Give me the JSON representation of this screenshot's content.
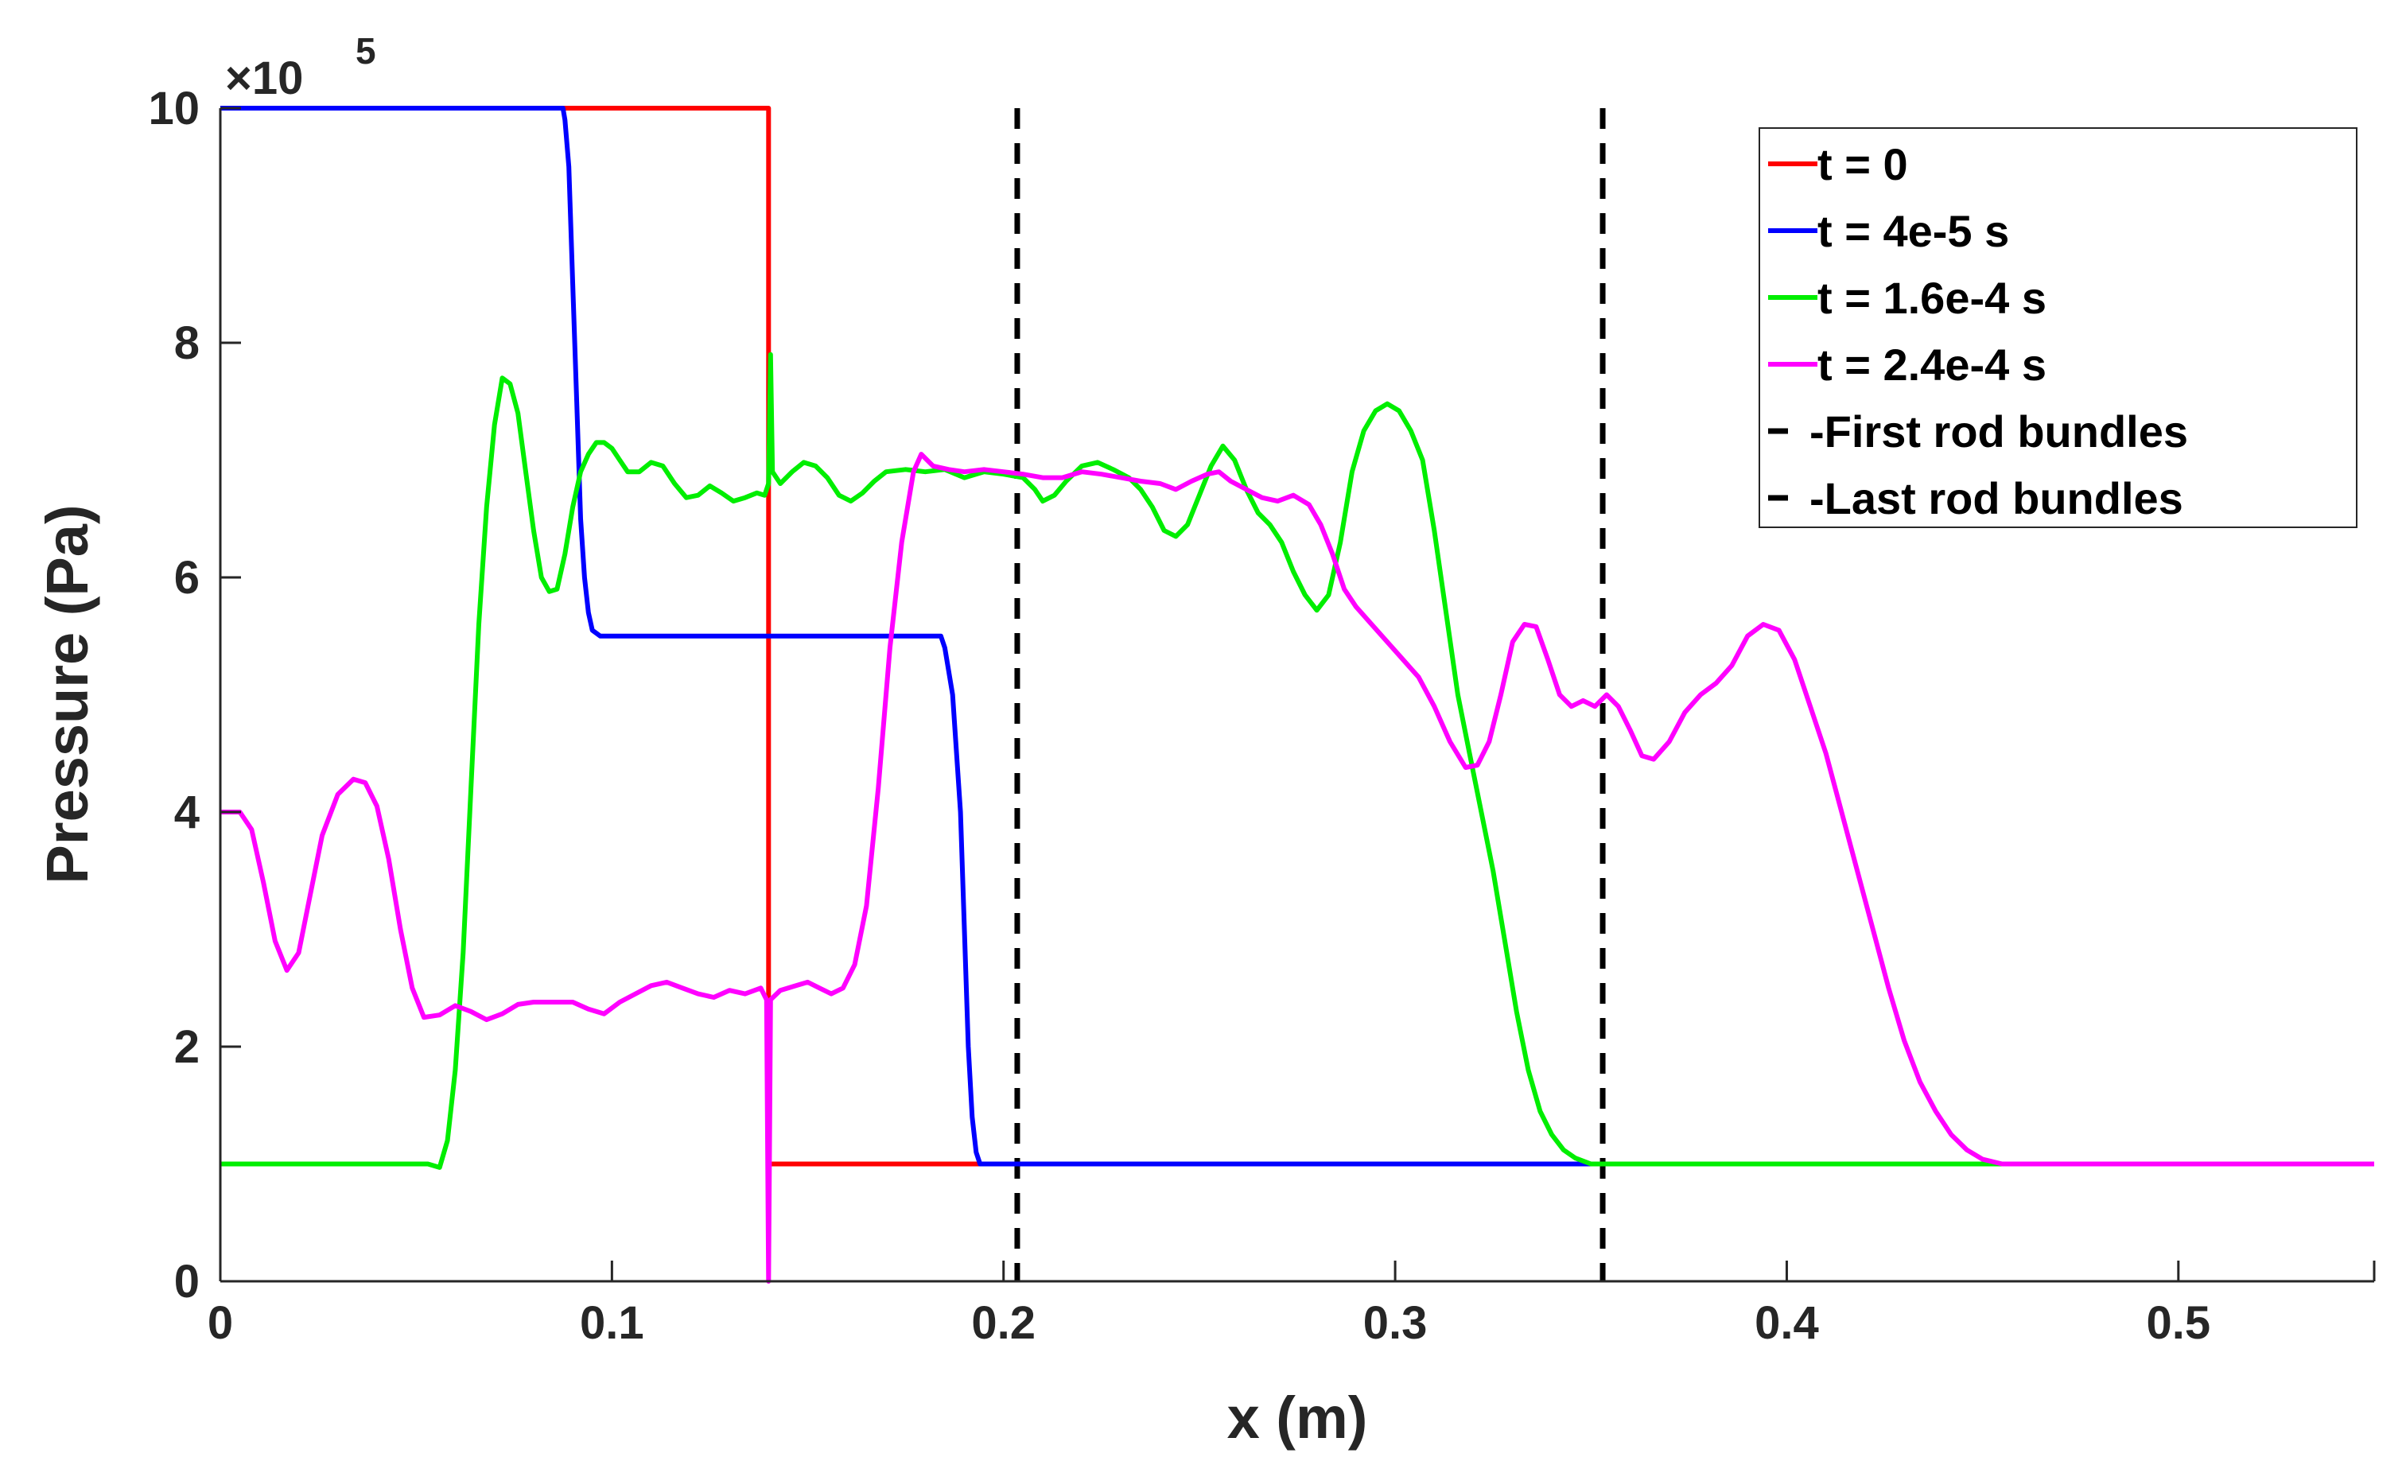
{
  "chart_data": {
    "type": "line",
    "xlabel": "x (m)",
    "ylabel": "Pressure (Pa)",
    "y_multiplier": {
      "base": "×10",
      "exponent": "5"
    },
    "xlim": [
      0,
      0.55
    ],
    "ylim": [
      0,
      10
    ],
    "xticks": [
      0,
      0.1,
      0.2,
      0.3,
      0.4,
      0.5
    ],
    "xtick_labels": [
      "0",
      "0.1",
      "0.2",
      "0.3",
      "0.4",
      "0.5"
    ],
    "yticks": [
      0,
      2,
      4,
      6,
      8,
      10
    ],
    "ytick_labels": [
      "0",
      "2",
      "4",
      "6",
      "8",
      "10"
    ],
    "grid": false,
    "legend_position": "top-right",
    "series": [
      {
        "name": "t = 0",
        "color": "#ff0000",
        "points": [
          [
            0,
            10
          ],
          [
            0.14,
            10
          ],
          [
            0.14,
            1
          ],
          [
            0.55,
            1
          ]
        ]
      },
      {
        "name": "t = 4e-5 s",
        "color": "#0000ff",
        "points": [
          [
            0,
            10
          ],
          [
            0.0875,
            10
          ],
          [
            0.088,
            9.9
          ],
          [
            0.089,
            9.5
          ],
          [
            0.09,
            8.5
          ],
          [
            0.091,
            7.5
          ],
          [
            0.092,
            6.5
          ],
          [
            0.093,
            6.0
          ],
          [
            0.094,
            5.7
          ],
          [
            0.095,
            5.55
          ],
          [
            0.097,
            5.5
          ],
          [
            0.14,
            5.5
          ],
          [
            0.184,
            5.5
          ],
          [
            0.185,
            5.4
          ],
          [
            0.187,
            5.0
          ],
          [
            0.189,
            4.0
          ],
          [
            0.19,
            3.0
          ],
          [
            0.191,
            2.0
          ],
          [
            0.192,
            1.4
          ],
          [
            0.193,
            1.1
          ],
          [
            0.194,
            1.0
          ],
          [
            0.55,
            1
          ]
        ]
      },
      {
        "name": "t = 1.6e-4 s",
        "color": "#00ee00",
        "points": [
          [
            0,
            1
          ],
          [
            0.053,
            1
          ],
          [
            0.056,
            0.97
          ],
          [
            0.058,
            1.2
          ],
          [
            0.06,
            1.8
          ],
          [
            0.062,
            2.8
          ],
          [
            0.064,
            4.2
          ],
          [
            0.066,
            5.6
          ],
          [
            0.068,
            6.6
          ],
          [
            0.07,
            7.3
          ],
          [
            0.072,
            7.7
          ],
          [
            0.074,
            7.65
          ],
          [
            0.076,
            7.4
          ],
          [
            0.078,
            6.9
          ],
          [
            0.08,
            6.4
          ],
          [
            0.082,
            6.0
          ],
          [
            0.084,
            5.88
          ],
          [
            0.086,
            5.9
          ],
          [
            0.088,
            6.2
          ],
          [
            0.09,
            6.6
          ],
          [
            0.092,
            6.9
          ],
          [
            0.094,
            7.05
          ],
          [
            0.096,
            7.15
          ],
          [
            0.098,
            7.15
          ],
          [
            0.1,
            7.1
          ],
          [
            0.102,
            7.0
          ],
          [
            0.104,
            6.9
          ],
          [
            0.107,
            6.9
          ],
          [
            0.11,
            6.98
          ],
          [
            0.113,
            6.95
          ],
          [
            0.116,
            6.8
          ],
          [
            0.119,
            6.68
          ],
          [
            0.122,
            6.7
          ],
          [
            0.125,
            6.78
          ],
          [
            0.128,
            6.72
          ],
          [
            0.131,
            6.65
          ],
          [
            0.134,
            6.68
          ],
          [
            0.137,
            6.72
          ],
          [
            0.139,
            6.7
          ],
          [
            0.14,
            6.8
          ],
          [
            0.1405,
            7.9
          ],
          [
            0.141,
            6.9
          ],
          [
            0.143,
            6.8
          ],
          [
            0.146,
            6.9
          ],
          [
            0.149,
            6.98
          ],
          [
            0.152,
            6.95
          ],
          [
            0.155,
            6.85
          ],
          [
            0.158,
            6.7
          ],
          [
            0.161,
            6.65
          ],
          [
            0.164,
            6.72
          ],
          [
            0.167,
            6.82
          ],
          [
            0.17,
            6.9
          ],
          [
            0.175,
            6.92
          ],
          [
            0.18,
            6.9
          ],
          [
            0.185,
            6.92
          ],
          [
            0.19,
            6.85
          ],
          [
            0.195,
            6.9
          ],
          [
            0.2,
            6.88
          ],
          [
            0.205,
            6.85
          ],
          [
            0.208,
            6.75
          ],
          [
            0.21,
            6.65
          ],
          [
            0.213,
            6.7
          ],
          [
            0.216,
            6.82
          ],
          [
            0.22,
            6.95
          ],
          [
            0.224,
            6.98
          ],
          [
            0.228,
            6.92
          ],
          [
            0.232,
            6.85
          ],
          [
            0.235,
            6.75
          ],
          [
            0.238,
            6.6
          ],
          [
            0.241,
            6.4
          ],
          [
            0.244,
            6.35
          ],
          [
            0.247,
            6.45
          ],
          [
            0.25,
            6.7
          ],
          [
            0.253,
            6.95
          ],
          [
            0.256,
            7.12
          ],
          [
            0.259,
            7.0
          ],
          [
            0.262,
            6.75
          ],
          [
            0.265,
            6.55
          ],
          [
            0.268,
            6.45
          ],
          [
            0.271,
            6.3
          ],
          [
            0.274,
            6.05
          ],
          [
            0.277,
            5.85
          ],
          [
            0.28,
            5.72
          ],
          [
            0.283,
            5.85
          ],
          [
            0.286,
            6.3
          ],
          [
            0.289,
            6.9
          ],
          [
            0.292,
            7.25
          ],
          [
            0.295,
            7.42
          ],
          [
            0.298,
            7.48
          ],
          [
            0.301,
            7.42
          ],
          [
            0.304,
            7.25
          ],
          [
            0.307,
            7.0
          ],
          [
            0.31,
            6.4
          ],
          [
            0.313,
            5.7
          ],
          [
            0.316,
            5.0
          ],
          [
            0.319,
            4.5
          ],
          [
            0.322,
            4.0
          ],
          [
            0.325,
            3.5
          ],
          [
            0.328,
            2.9
          ],
          [
            0.331,
            2.3
          ],
          [
            0.334,
            1.8
          ],
          [
            0.337,
            1.45
          ],
          [
            0.34,
            1.25
          ],
          [
            0.343,
            1.12
          ],
          [
            0.346,
            1.05
          ],
          [
            0.35,
            1.0
          ],
          [
            0.55,
            1
          ]
        ]
      },
      {
        "name": "t = 2.4e-4 s",
        "color": "#ff00ff",
        "points": [
          [
            0,
            4.0
          ],
          [
            0.005,
            4.0
          ],
          [
            0.008,
            3.85
          ],
          [
            0.011,
            3.4
          ],
          [
            0.014,
            2.9
          ],
          [
            0.017,
            2.65
          ],
          [
            0.02,
            2.8
          ],
          [
            0.023,
            3.3
          ],
          [
            0.026,
            3.8
          ],
          [
            0.03,
            4.15
          ],
          [
            0.034,
            4.28
          ],
          [
            0.037,
            4.25
          ],
          [
            0.04,
            4.05
          ],
          [
            0.043,
            3.6
          ],
          [
            0.046,
            3.0
          ],
          [
            0.049,
            2.5
          ],
          [
            0.052,
            2.25
          ],
          [
            0.056,
            2.27
          ],
          [
            0.06,
            2.35
          ],
          [
            0.064,
            2.3
          ],
          [
            0.068,
            2.23
          ],
          [
            0.072,
            2.28
          ],
          [
            0.076,
            2.36
          ],
          [
            0.08,
            2.38
          ],
          [
            0.085,
            2.38
          ],
          [
            0.09,
            2.38
          ],
          [
            0.094,
            2.32
          ],
          [
            0.098,
            2.28
          ],
          [
            0.102,
            2.38
          ],
          [
            0.106,
            2.45
          ],
          [
            0.11,
            2.52
          ],
          [
            0.114,
            2.55
          ],
          [
            0.118,
            2.5
          ],
          [
            0.122,
            2.45
          ],
          [
            0.126,
            2.42
          ],
          [
            0.13,
            2.48
          ],
          [
            0.134,
            2.45
          ],
          [
            0.138,
            2.5
          ],
          [
            0.1395,
            2.4
          ],
          [
            0.14,
            0.0
          ],
          [
            0.1405,
            2.4
          ],
          [
            0.143,
            2.48
          ],
          [
            0.147,
            2.52
          ],
          [
            0.15,
            2.55
          ],
          [
            0.153,
            2.5
          ],
          [
            0.156,
            2.45
          ],
          [
            0.159,
            2.5
          ],
          [
            0.162,
            2.7
          ],
          [
            0.165,
            3.2
          ],
          [
            0.168,
            4.2
          ],
          [
            0.171,
            5.4
          ],
          [
            0.174,
            6.3
          ],
          [
            0.177,
            6.9
          ],
          [
            0.179,
            7.05
          ],
          [
            0.182,
            6.95
          ],
          [
            0.186,
            6.92
          ],
          [
            0.19,
            6.9
          ],
          [
            0.195,
            6.92
          ],
          [
            0.2,
            6.9
          ],
          [
            0.205,
            6.88
          ],
          [
            0.21,
            6.85
          ],
          [
            0.215,
            6.85
          ],
          [
            0.22,
            6.9
          ],
          [
            0.225,
            6.88
          ],
          [
            0.23,
            6.85
          ],
          [
            0.235,
            6.82
          ],
          [
            0.24,
            6.8
          ],
          [
            0.244,
            6.75
          ],
          [
            0.248,
            6.82
          ],
          [
            0.252,
            6.88
          ],
          [
            0.255,
            6.9
          ],
          [
            0.258,
            6.82
          ],
          [
            0.262,
            6.75
          ],
          [
            0.266,
            6.68
          ],
          [
            0.27,
            6.65
          ],
          [
            0.274,
            6.7
          ],
          [
            0.278,
            6.62
          ],
          [
            0.281,
            6.45
          ],
          [
            0.284,
            6.2
          ],
          [
            0.287,
            5.9
          ],
          [
            0.29,
            5.75
          ],
          [
            0.294,
            5.6
          ],
          [
            0.298,
            5.45
          ],
          [
            0.302,
            5.3
          ],
          [
            0.306,
            5.15
          ],
          [
            0.31,
            4.9
          ],
          [
            0.314,
            4.6
          ],
          [
            0.318,
            4.38
          ],
          [
            0.321,
            4.4
          ],
          [
            0.324,
            4.6
          ],
          [
            0.327,
            5.0
          ],
          [
            0.33,
            5.45
          ],
          [
            0.333,
            5.6
          ],
          [
            0.336,
            5.58
          ],
          [
            0.339,
            5.3
          ],
          [
            0.342,
            5.0
          ],
          [
            0.345,
            4.9
          ],
          [
            0.348,
            4.95
          ],
          [
            0.351,
            4.9
          ],
          [
            0.354,
            5.0
          ],
          [
            0.357,
            4.9
          ],
          [
            0.36,
            4.7
          ],
          [
            0.363,
            4.48
          ],
          [
            0.366,
            4.45
          ],
          [
            0.37,
            4.6
          ],
          [
            0.374,
            4.85
          ],
          [
            0.378,
            5.0
          ],
          [
            0.382,
            5.1
          ],
          [
            0.386,
            5.25
          ],
          [
            0.39,
            5.5
          ],
          [
            0.394,
            5.6
          ],
          [
            0.398,
            5.55
          ],
          [
            0.402,
            5.3
          ],
          [
            0.406,
            4.9
          ],
          [
            0.41,
            4.5
          ],
          [
            0.414,
            4.0
          ],
          [
            0.418,
            3.5
          ],
          [
            0.422,
            3.0
          ],
          [
            0.426,
            2.5
          ],
          [
            0.43,
            2.05
          ],
          [
            0.434,
            1.7
          ],
          [
            0.438,
            1.45
          ],
          [
            0.442,
            1.25
          ],
          [
            0.446,
            1.12
          ],
          [
            0.45,
            1.04
          ],
          [
            0.455,
            1.0
          ],
          [
            0.55,
            1
          ]
        ]
      }
    ],
    "reference_lines": [
      {
        "name": "First rod bundles",
        "x": 0.2035,
        "color": "#000000",
        "style": "dashed"
      },
      {
        "name": "Last rod bundles",
        "x": 0.353,
        "color": "#000000",
        "style": "dashed"
      }
    ],
    "legend_entries": [
      "t = 0",
      "t = 4e-5 s",
      "t = 1.6e-4 s",
      "t = 2.4e-4 s",
      "-First rod bundles",
      "-Last rod bundles"
    ],
    "legend_colors": [
      "#ff0000",
      "#0000ff",
      "#00ee00",
      "#ff00ff",
      "#000000",
      "#000000"
    ]
  }
}
